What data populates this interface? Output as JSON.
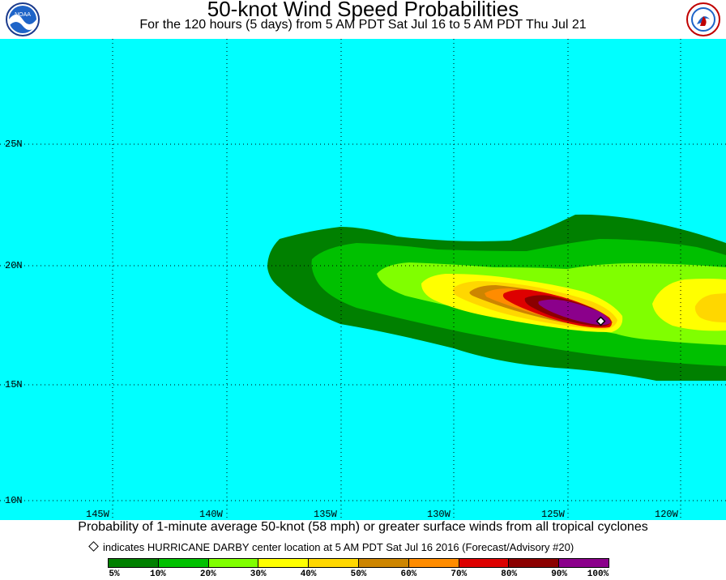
{
  "header": {
    "title": "50-knot Wind Speed Probabilities",
    "subtitle": "For the 120 hours (5 days) from 5 AM PDT Sat Jul 16 to 5 AM PDT Thu Jul 21",
    "logo_left": "NOAA",
    "logo_right": "NATIONAL WEATHER SERVICE"
  },
  "map": {
    "ocean_color": "#00ffff",
    "lat_labels": [
      "25N",
      "20N",
      "15N",
      "10N"
    ],
    "lon_labels": [
      "145W",
      "140W",
      "135W",
      "130W",
      "125W",
      "120W"
    ],
    "grid": "dotted",
    "storm_center_icon": "diamond-icon"
  },
  "footer": {
    "description": "Probability of 1-minute average 50-knot (58 mph) or greater surface winds from all tropical cyclones",
    "legend_note": "indicates HURRICANE DARBY center location at 5 AM PDT Sat Jul 16 2016 (Forecast/Advisory #20)"
  },
  "colorbar": {
    "colors": [
      "#008000",
      "#00c000",
      "#80ff00",
      "#ffff00",
      "#ffd700",
      "#cd8500",
      "#ff8c00",
      "#dd0000",
      "#8b0000",
      "#8b008b"
    ],
    "labels": [
      "5%",
      "10%",
      "20%",
      "30%",
      "40%",
      "50%",
      "60%",
      "70%",
      "80%",
      "90%",
      "100%"
    ]
  }
}
